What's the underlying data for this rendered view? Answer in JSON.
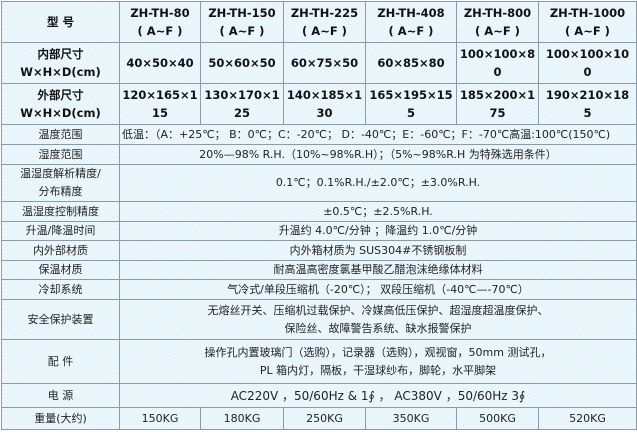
{
  "header": {
    "label": "型 号",
    "models": [
      [
        "ZH-TH-80",
        "( A~F )"
      ],
      [
        "ZH-TH-150",
        "( A~F )"
      ],
      [
        "ZH-TH-225",
        "( A~F )"
      ],
      [
        "ZH-TH-408",
        "( A~F )"
      ],
      [
        "ZH-TH-800",
        "( A~F )"
      ],
      [
        "ZH-TH-1000",
        "( A~F )"
      ]
    ]
  },
  "inner": {
    "label1": "内部尺寸",
    "label2": "W×H×D(cm)",
    "values": [
      [
        "40×50×40",
        ""
      ],
      [
        "50×60×50",
        ""
      ],
      [
        "60×75×50",
        ""
      ],
      [
        "60×85×80",
        ""
      ],
      [
        "100×100×8",
        "0"
      ],
      [
        "100×100×10",
        "0"
      ]
    ]
  },
  "outer": {
    "label1": "外部尺寸",
    "label2": "W×H×D(cm)",
    "values": [
      [
        "120×165×1",
        "15"
      ],
      [
        "130×170×1",
        "25"
      ],
      [
        "140×185×1",
        "30"
      ],
      [
        "165×195×15",
        "5"
      ],
      [
        "185×200×1",
        "75"
      ],
      [
        "190×210×18",
        "5"
      ]
    ]
  },
  "rows": [
    {
      "label": "温度范围",
      "value": "低温：（A：+25℃； B：0℃；C：-20℃； D：-40℃；E：-60℃；F：-70℃高温:100℃(150℃)"
    },
    {
      "label": "湿度范围",
      "value": "20%—98% R.H.（10%~98%R.H）；（5%~98%R.H 为特殊选用条件）"
    },
    {
      "label": "温湿度解析精度/",
      "label2": "分布精度",
      "value": "0.1℃；0.1%R.H./±2.0℃；±3.0%R.H."
    },
    {
      "label": "温湿度控制精度",
      "value": "±0.5℃；±2.5%R.H."
    },
    {
      "label": "升温/降温时间",
      "value": "升温约 4.0℃/分钟 ；降温约 1.0℃/分钟"
    },
    {
      "label": "内外部材质",
      "value": "内外箱材质为 SUS304#不锈钢板制"
    },
    {
      "label": "保温材质",
      "value": "耐高温高密度氯基甲酸乙醋泡沫绝缘体材料"
    },
    {
      "label": "冷却系统",
      "value": "气冷式/单段压缩机（-20℃）； 双段压缩机（-40℃—-70℃）"
    },
    {
      "label": "安全保护装置",
      "value": "无熔丝开关、压缩机过载保护、冷媒高低压保护、超湿度超温度保护、",
      "value2": "保险丝、故障警告系统、缺水报警保护"
    },
    {
      "label": "配 件",
      "value": "操作孔内置玻璃门（选购），记录器（选购），观视窗，50mm 测试孔，",
      "value2": "PL 箱内灯，隔板，干湿球纱布，脚轮，水平脚架"
    },
    {
      "label": "电 源",
      "value": "AC220V ，50/60Hz & 1∮ ， AC380V ，50/60Hz 3∮"
    }
  ],
  "weight": {
    "label": "重量(大约)",
    "values": [
      "150KG",
      "180KG",
      "250KG",
      "350KG",
      "500KG",
      "520KG"
    ]
  }
}
